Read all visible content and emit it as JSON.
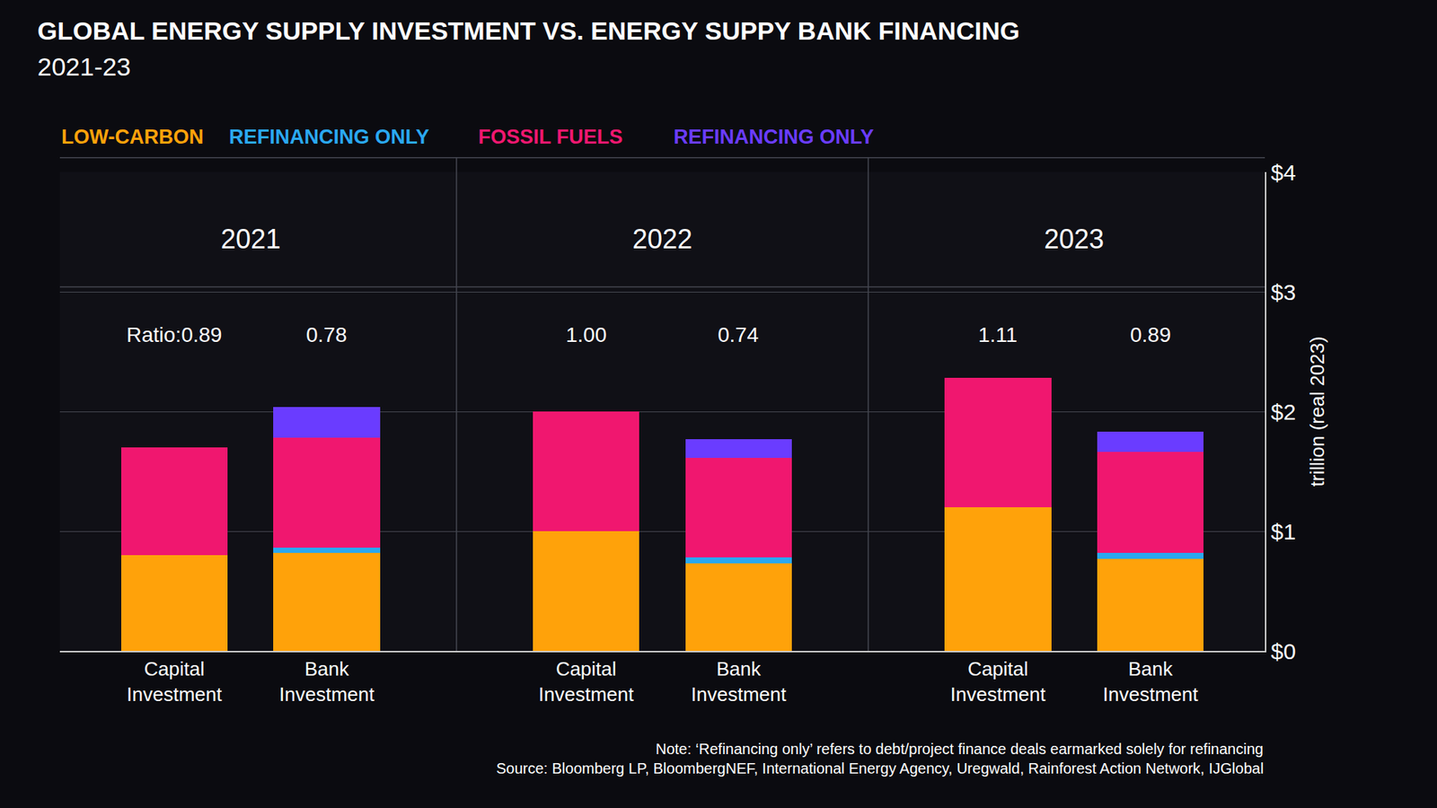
{
  "chart_data": {
    "type": "bar",
    "stacked": true,
    "title": "GLOBAL ENERGY SUPPLY INVESTMENT VS. ENERGY SUPPY BANK FINANCING",
    "subtitle": "2021-23",
    "groups": [
      "2021",
      "2022",
      "2023"
    ],
    "categories": [
      "Capital Investment",
      "Bank Investment",
      "Capital Investment",
      "Bank Investment",
      "Capital Investment",
      "Bank Investment"
    ],
    "series": [
      {
        "name": "LOW-CARBON",
        "color": "#ffa20a",
        "values": [
          0.8,
          0.82,
          1.0,
          0.73,
          1.2,
          0.77
        ]
      },
      {
        "name": "REFINANCING ONLY",
        "color": "#2aa8f0",
        "values": [
          0,
          0.04,
          0,
          0.05,
          0,
          0.05
        ]
      },
      {
        "name": "FOSSIL FUELS",
        "color": "#f0176f",
        "values": [
          0.9,
          0.92,
          1.0,
          0.83,
          1.08,
          0.84
        ]
      },
      {
        "name": "REFINANCING ONLY",
        "color": "#6a3cff",
        "values": [
          0,
          0.26,
          0,
          0.16,
          0,
          0.17
        ]
      }
    ],
    "ratios": [
      0.89,
      0.78,
      1.0,
      0.74,
      1.11,
      0.89
    ],
    "ratio_labels": [
      "Ratio:0.89",
      "0.78",
      "1.00",
      "0.74",
      "1.11",
      "0.89"
    ],
    "y_label": "trillion (real 2023)",
    "ylim": [
      0,
      4
    ],
    "yticks": [
      {
        "value": 0,
        "label": "$0"
      },
      {
        "value": 1,
        "label": "$1"
      },
      {
        "value": 2,
        "label": "$2"
      },
      {
        "value": 3,
        "label": "$3"
      },
      {
        "value": 4,
        "label": "$4"
      }
    ],
    "grid": true,
    "legend": "top",
    "notes": [
      "Note: ‘Refinancing only’ refers to debt/project finance deals earmarked solely for refinancing",
      "Source: Bloomberg LP, BloombergNEF, International Energy Agency, Uregwald, Rainforest Action Network, IJGlobal"
    ]
  }
}
